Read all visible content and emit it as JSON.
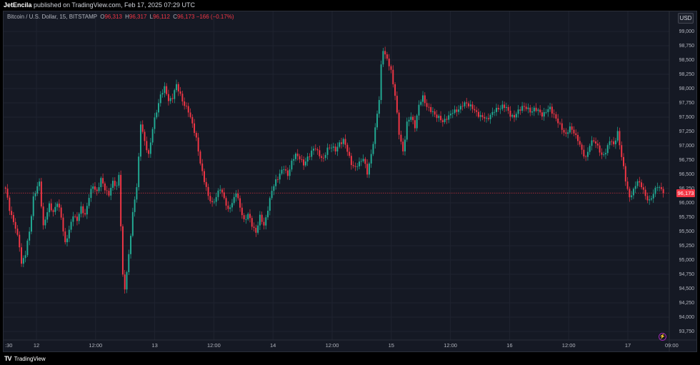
{
  "header": {
    "author": "JetEncila",
    "text": "published on TradingView.com, Feb 17, 2025 07:29 UTC"
  },
  "legend": {
    "symbol": "Bitcoin / U.S. Dollar, 15, BITSTAMP",
    "o_label": "O",
    "open": "96,313",
    "h_label": "H",
    "high": "96,317",
    "l_label": "L",
    "low": "96,112",
    "c_label": "C",
    "close": "96,173",
    "change": "−166 (−0.17%)"
  },
  "currency_button": "USD",
  "last_price_label": "96,173",
  "footer": {
    "logo": "TV",
    "brand": "TradingView"
  },
  "colors": {
    "up": "#22ab94",
    "down": "#f23645",
    "background": "#151924",
    "grid": "#1f2330"
  },
  "chart_data": {
    "type": "candlestick",
    "symbol": "Bitcoin / U.S. Dollar, 15, BITSTAMP",
    "interval": "15",
    "ylim": [
      93600,
      99350
    ],
    "y_ticks": [
      93750,
      94000,
      94250,
      94500,
      94750,
      95000,
      95250,
      95500,
      95750,
      96000,
      96250,
      96500,
      96750,
      97000,
      97250,
      97500,
      97750,
      98000,
      98250,
      98500,
      98750,
      99000
    ],
    "y_tick_labels": [
      "93,750",
      "94,000",
      "94,250",
      "94,500",
      "94,750",
      "95,000",
      "95,250",
      "95,500",
      "95,750",
      "96,000",
      "96,250",
      "96,500",
      "96,750",
      "97,000",
      "97,250",
      "97,500",
      "97,750",
      "98,000",
      "98,250",
      "98,500",
      "98,750",
      "99,000"
    ],
    "x_tick_labels": [
      ":30",
      "12",
      "12:00",
      "13",
      "12:00",
      "14",
      "12:00",
      "15",
      "12:00",
      "16",
      "12:00",
      "17",
      "09:00"
    ],
    "last_price": 96173,
    "path": [
      [
        0,
        96230
      ],
      [
        2,
        95900
      ],
      [
        5,
        95550
      ],
      [
        7,
        95250
      ],
      [
        8,
        94950
      ],
      [
        10,
        95100
      ],
      [
        12,
        95500
      ],
      [
        14,
        96100
      ],
      [
        17,
        96350
      ],
      [
        19,
        95600
      ],
      [
        22,
        95950
      ],
      [
        24,
        95850
      ],
      [
        26,
        96000
      ],
      [
        28,
        95750
      ],
      [
        30,
        95300
      ],
      [
        32,
        95500
      ],
      [
        34,
        95800
      ],
      [
        36,
        95700
      ],
      [
        38,
        95900
      ],
      [
        40,
        95800
      ],
      [
        42,
        96100
      ],
      [
        44,
        96300
      ],
      [
        46,
        96200
      ],
      [
        48,
        96400
      ],
      [
        50,
        96250
      ],
      [
        52,
        96150
      ],
      [
        54,
        96350
      ],
      [
        56,
        96300
      ],
      [
        57,
        96500
      ],
      [
        58,
        95600
      ],
      [
        59,
        94700
      ],
      [
        60,
        94500
      ],
      [
        62,
        95100
      ],
      [
        64,
        95800
      ],
      [
        66,
        96300
      ],
      [
        67,
        96800
      ],
      [
        68,
        97400
      ],
      [
        70,
        97050
      ],
      [
        72,
        96850
      ],
      [
        74,
        97300
      ],
      [
        76,
        97600
      ],
      [
        78,
        97900
      ],
      [
        80,
        98000
      ],
      [
        82,
        97800
      ],
      [
        84,
        97850
      ],
      [
        86,
        98050
      ],
      [
        88,
        97900
      ],
      [
        90,
        97700
      ],
      [
        92,
        97600
      ],
      [
        94,
        97400
      ],
      [
        96,
        97100
      ],
      [
        98,
        96700
      ],
      [
        100,
        96400
      ],
      [
        102,
        96100
      ],
      [
        104,
        96000
      ],
      [
        106,
        96100
      ],
      [
        108,
        96250
      ],
      [
        110,
        96100
      ],
      [
        112,
        95850
      ],
      [
        114,
        96000
      ],
      [
        116,
        96200
      ],
      [
        118,
        95900
      ],
      [
        120,
        95700
      ],
      [
        122,
        95800
      ],
      [
        124,
        95600
      ],
      [
        126,
        95500
      ],
      [
        128,
        95750
      ],
      [
        130,
        95600
      ],
      [
        132,
        95900
      ],
      [
        134,
        96200
      ],
      [
        136,
        96400
      ],
      [
        138,
        96500
      ],
      [
        140,
        96600
      ],
      [
        142,
        96500
      ],
      [
        144,
        96700
      ],
      [
        146,
        96850
      ],
      [
        148,
        96800
      ],
      [
        150,
        96650
      ],
      [
        152,
        96800
      ],
      [
        154,
        96900
      ],
      [
        156,
        96950
      ],
      [
        158,
        96850
      ],
      [
        160,
        96750
      ],
      [
        162,
        96950
      ],
      [
        164,
        97000
      ],
      [
        166,
        96900
      ],
      [
        168,
        97050
      ],
      [
        170,
        97100
      ],
      [
        172,
        96900
      ],
      [
        174,
        96700
      ],
      [
        176,
        96600
      ],
      [
        178,
        96700
      ],
      [
        180,
        96800
      ],
      [
        182,
        96500
      ],
      [
        184,
        96850
      ],
      [
        186,
        97300
      ],
      [
        188,
        97800
      ],
      [
        189,
        98400
      ],
      [
        190,
        98700
      ],
      [
        192,
        98500
      ],
      [
        194,
        98300
      ],
      [
        196,
        97900
      ],
      [
        198,
        97200
      ],
      [
        200,
        96900
      ],
      [
        202,
        97400
      ],
      [
        204,
        97500
      ],
      [
        206,
        97350
      ],
      [
        208,
        97700
      ],
      [
        210,
        97850
      ],
      [
        212,
        97700
      ],
      [
        214,
        97600
      ],
      [
        216,
        97550
      ],
      [
        218,
        97500
      ],
      [
        220,
        97400
      ],
      [
        222,
        97500
      ],
      [
        224,
        97550
      ],
      [
        226,
        97600
      ],
      [
        228,
        97650
      ],
      [
        230,
        97700
      ],
      [
        232,
        97750
      ],
      [
        234,
        97700
      ],
      [
        236,
        97600
      ],
      [
        238,
        97550
      ],
      [
        240,
        97500
      ],
      [
        242,
        97450
      ],
      [
        244,
        97550
      ],
      [
        246,
        97600
      ],
      [
        248,
        97650
      ],
      [
        250,
        97700
      ],
      [
        252,
        97650
      ],
      [
        254,
        97550
      ],
      [
        256,
        97500
      ],
      [
        258,
        97600
      ],
      [
        260,
        97700
      ],
      [
        262,
        97650
      ],
      [
        264,
        97600
      ],
      [
        266,
        97650
      ],
      [
        268,
        97600
      ],
      [
        270,
        97550
      ],
      [
        272,
        97600
      ],
      [
        274,
        97650
      ],
      [
        276,
        97550
      ],
      [
        278,
        97400
      ],
      [
        280,
        97300
      ],
      [
        282,
        97200
      ],
      [
        284,
        97300
      ],
      [
        286,
        97250
      ],
      [
        288,
        97100
      ],
      [
        290,
        96900
      ],
      [
        292,
        96800
      ],
      [
        294,
        97000
      ],
      [
        296,
        97100
      ],
      [
        298,
        97000
      ],
      [
        300,
        96800
      ],
      [
        302,
        96900
      ],
      [
        304,
        97100
      ],
      [
        306,
        97000
      ],
      [
        308,
        97250
      ],
      [
        310,
        96800
      ],
      [
        312,
        96400
      ],
      [
        314,
        96100
      ],
      [
        316,
        96200
      ],
      [
        318,
        96400
      ],
      [
        320,
        96300
      ],
      [
        322,
        96100
      ],
      [
        324,
        96050
      ],
      [
        326,
        96150
      ],
      [
        328,
        96300
      ],
      [
        330,
        96250
      ],
      [
        331,
        96173
      ]
    ]
  }
}
